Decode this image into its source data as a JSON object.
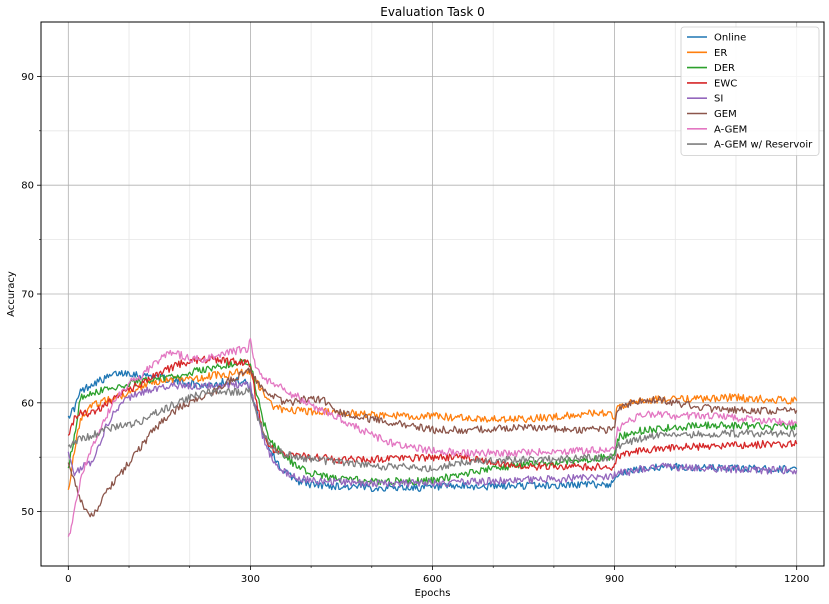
{
  "chart_data": {
    "type": "line",
    "title": "Evaluation Task 0",
    "xlabel": "Epochs",
    "ylabel": "Accuracy",
    "xlim": [
      -45,
      1245
    ],
    "ylim": [
      45,
      95
    ],
    "xticks": [
      0,
      300,
      600,
      900,
      1200
    ],
    "yticks": [
      50,
      60,
      70,
      80,
      90
    ],
    "xticks_minor": [
      100,
      200,
      400,
      500,
      700,
      800,
      1000,
      1100
    ],
    "yticks_minor": [
      55,
      65,
      75,
      85
    ],
    "grid": true,
    "legend_position": "top-right",
    "series": [
      {
        "name": "Online",
        "color": "#1f77b4",
        "x": [
          0,
          10,
          20,
          40,
          60,
          80,
          100,
          120,
          140,
          160,
          180,
          200,
          220,
          240,
          260,
          280,
          295,
          300,
          310,
          320,
          330,
          340,
          350,
          360,
          380,
          400,
          450,
          500,
          550,
          600,
          650,
          700,
          750,
          800,
          850,
          880,
          895,
          900,
          905,
          930,
          950,
          970,
          1000,
          1050,
          1100,
          1150,
          1200
        ],
        "y": [
          58.8,
          59.5,
          61.0,
          61.8,
          62.2,
          62.7,
          62.8,
          62.5,
          62.5,
          62.2,
          62.0,
          61.8,
          61.6,
          61.7,
          62.0,
          62.0,
          61.8,
          61.0,
          59.5,
          57.5,
          56.0,
          55.0,
          54.0,
          53.5,
          52.8,
          52.5,
          52.3,
          52.2,
          52.2,
          52.2,
          52.3,
          52.3,
          52.4,
          52.4,
          52.5,
          52.5,
          52.5,
          53.2,
          53.5,
          53.7,
          54.0,
          54.1,
          54.1,
          54.0,
          54.0,
          53.9,
          53.9
        ]
      },
      {
        "name": "ER",
        "color": "#ff7f0e",
        "x": [
          0,
          10,
          20,
          40,
          60,
          80,
          100,
          120,
          140,
          160,
          180,
          200,
          220,
          240,
          260,
          280,
          295,
          300,
          310,
          320,
          330,
          340,
          360,
          400,
          450,
          500,
          550,
          600,
          650,
          700,
          750,
          800,
          850,
          880,
          895,
          900,
          905,
          930,
          950,
          970,
          1000,
          1050,
          1100,
          1150,
          1200
        ],
        "y": [
          52.0,
          55.5,
          58.5,
          59.8,
          60.2,
          60.5,
          61.0,
          61.5,
          62.0,
          62.0,
          62.2,
          62.2,
          62.3,
          62.5,
          62.6,
          62.8,
          62.8,
          62.8,
          62.0,
          61.0,
          60.2,
          59.6,
          59.3,
          59.2,
          59.1,
          58.9,
          58.8,
          58.8,
          58.6,
          58.5,
          58.5,
          58.7,
          59.0,
          59.0,
          58.9,
          58.8,
          59.6,
          60.0,
          60.2,
          60.3,
          60.3,
          60.4,
          60.5,
          60.3,
          60.2
        ]
      },
      {
        "name": "DER",
        "color": "#2ca02c",
        "x": [
          0,
          10,
          20,
          40,
          60,
          80,
          100,
          120,
          140,
          160,
          180,
          200,
          220,
          240,
          260,
          280,
          295,
          300,
          310,
          320,
          330,
          340,
          360,
          380,
          400,
          420,
          450,
          500,
          550,
          600,
          650,
          700,
          750,
          800,
          850,
          880,
          895,
          900,
          905,
          930,
          950,
          970,
          1000,
          1050,
          1100,
          1150,
          1200
        ],
        "y": [
          54.0,
          57.0,
          60.5,
          61.0,
          61.2,
          61.5,
          61.8,
          62.0,
          62.2,
          62.3,
          62.5,
          62.8,
          63.0,
          63.2,
          63.5,
          63.8,
          63.8,
          63.6,
          61.0,
          58.5,
          57.0,
          56.0,
          55.0,
          54.0,
          53.5,
          53.2,
          53.0,
          52.8,
          52.8,
          52.8,
          53.5,
          54.0,
          54.3,
          54.5,
          54.8,
          55.0,
          55.0,
          55.0,
          56.8,
          57.3,
          57.5,
          57.6,
          57.8,
          57.9,
          57.9,
          57.8,
          57.8
        ]
      },
      {
        "name": "EWC",
        "color": "#d62728",
        "x": [
          0,
          10,
          20,
          40,
          60,
          80,
          100,
          120,
          140,
          160,
          180,
          200,
          220,
          240,
          260,
          280,
          295,
          300,
          310,
          320,
          330,
          340,
          360,
          400,
          450,
          500,
          550,
          600,
          650,
          700,
          750,
          800,
          850,
          880,
          895,
          900,
          905,
          930,
          950,
          970,
          1000,
          1050,
          1100,
          1150,
          1200
        ],
        "y": [
          57.0,
          58.5,
          59.0,
          59.0,
          59.8,
          60.5,
          61.2,
          61.8,
          62.5,
          63.0,
          63.5,
          63.8,
          64.0,
          64.0,
          63.8,
          63.8,
          63.7,
          63.5,
          60.0,
          57.5,
          56.0,
          55.6,
          55.3,
          55.0,
          54.8,
          54.8,
          54.9,
          55.0,
          55.0,
          54.5,
          54.2,
          54.1,
          54.1,
          54.1,
          54.1,
          54.1,
          55.0,
          55.4,
          55.6,
          55.8,
          55.9,
          56.0,
          56.1,
          56.2,
          56.2
        ]
      },
      {
        "name": "SI",
        "color": "#9467bd",
        "x": [
          0,
          10,
          20,
          40,
          60,
          80,
          100,
          120,
          140,
          160,
          180,
          200,
          220,
          240,
          260,
          280,
          295,
          300,
          310,
          320,
          330,
          340,
          350,
          360,
          380,
          400,
          450,
          500,
          550,
          600,
          650,
          700,
          750,
          800,
          850,
          880,
          895,
          900,
          905,
          930,
          950,
          970,
          1000,
          1050,
          1100,
          1150,
          1200
        ],
        "y": [
          55.5,
          53.5,
          54.0,
          54.5,
          57.5,
          59.5,
          60.5,
          61.0,
          61.3,
          61.5,
          61.6,
          61.5,
          61.5,
          61.6,
          61.6,
          61.7,
          61.7,
          61.5,
          59.0,
          57.0,
          55.5,
          54.5,
          54.0,
          53.5,
          53.1,
          52.8,
          52.7,
          52.6,
          52.6,
          52.6,
          52.7,
          52.8,
          52.9,
          53.0,
          53.1,
          53.2,
          53.2,
          53.4,
          53.5,
          53.7,
          54.0,
          54.1,
          54.1,
          54.0,
          53.9,
          53.8,
          53.8
        ]
      },
      {
        "name": "GEM",
        "color": "#8c564b",
        "x": [
          0,
          10,
          20,
          30,
          40,
          50,
          60,
          80,
          100,
          120,
          140,
          160,
          180,
          200,
          220,
          240,
          260,
          280,
          295,
          300,
          310,
          320,
          340,
          360,
          380,
          400,
          420,
          450,
          500,
          550,
          600,
          650,
          700,
          750,
          800,
          850,
          880,
          895,
          900,
          905,
          930,
          950,
          970,
          1000,
          1050,
          1100,
          1150,
          1200
        ],
        "y": [
          54.5,
          53.0,
          51.0,
          50.0,
          49.8,
          50.5,
          51.5,
          53.0,
          54.5,
          56.0,
          57.5,
          58.5,
          59.5,
          60.0,
          60.5,
          61.0,
          61.8,
          62.5,
          63.2,
          63.0,
          62.0,
          61.2,
          60.5,
          60.0,
          60.2,
          60.4,
          60.3,
          59.0,
          58.5,
          58.0,
          57.5,
          57.5,
          57.6,
          57.8,
          57.6,
          57.5,
          57.5,
          57.5,
          57.5,
          59.5,
          60.0,
          60.2,
          60.3,
          60.0,
          59.5,
          59.3,
          59.3,
          59.3
        ]
      },
      {
        "name": "A-GEM",
        "color": "#e377c2",
        "x": [
          0,
          5,
          10,
          20,
          40,
          60,
          80,
          100,
          120,
          140,
          160,
          180,
          200,
          220,
          240,
          260,
          280,
          295,
          300,
          305,
          310,
          320,
          340,
          360,
          380,
          400,
          450,
          500,
          550,
          600,
          650,
          700,
          750,
          800,
          850,
          880,
          895,
          900,
          905,
          930,
          950,
          970,
          1000,
          1050,
          1100,
          1150,
          1200
        ],
        "y": [
          47.7,
          48.5,
          50.0,
          53.0,
          56.0,
          58.5,
          60.5,
          61.8,
          62.5,
          63.5,
          64.5,
          64.5,
          64.0,
          64.0,
          64.2,
          64.5,
          64.8,
          65.0,
          66.0,
          64.0,
          63.0,
          62.3,
          61.8,
          61.0,
          60.5,
          59.8,
          58.5,
          57.0,
          56.0,
          55.6,
          55.4,
          55.4,
          55.4,
          55.5,
          55.6,
          55.7,
          55.8,
          55.8,
          57.5,
          58.5,
          59.0,
          59.0,
          58.8,
          58.8,
          58.6,
          58.3,
          58.1
        ]
      },
      {
        "name": "A-GEM w/ Reservoir",
        "color": "#7f7f7f",
        "x": [
          0,
          10,
          20,
          40,
          60,
          80,
          100,
          120,
          140,
          160,
          180,
          200,
          220,
          240,
          260,
          280,
          295,
          300,
          310,
          320,
          330,
          340,
          360,
          380,
          400,
          450,
          500,
          550,
          600,
          650,
          700,
          750,
          800,
          850,
          880,
          895,
          900,
          905,
          930,
          950,
          970,
          1000,
          1050,
          1100,
          1150,
          1200
        ],
        "y": [
          56.0,
          56.5,
          56.7,
          57.0,
          57.5,
          57.8,
          58.0,
          58.3,
          59.0,
          59.5,
          60.0,
          60.5,
          60.8,
          61.0,
          61.0,
          61.0,
          61.0,
          61.0,
          59.0,
          57.5,
          56.5,
          55.8,
          55.2,
          55.0,
          54.8,
          54.5,
          54.2,
          54.1,
          54.0,
          54.5,
          54.7,
          54.8,
          54.8,
          54.9,
          55.0,
          55.0,
          55.0,
          56.0,
          56.5,
          56.8,
          57.0,
          57.1,
          57.1,
          57.2,
          57.2,
          57.2
        ]
      }
    ]
  }
}
